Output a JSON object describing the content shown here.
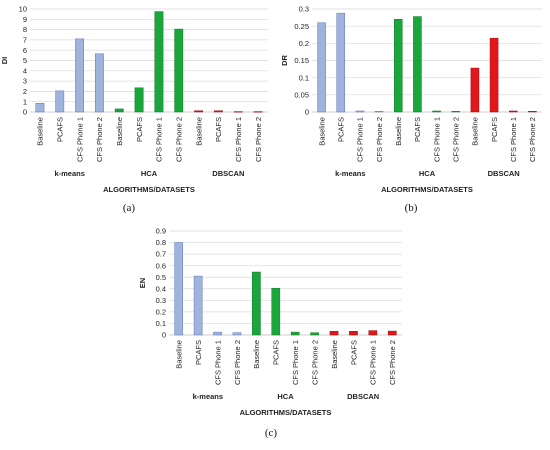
{
  "colors": {
    "blue": "#9fb3dc",
    "blue_edge": "#5a7ab8",
    "green": "#1aa63a",
    "green_edge": "#107a28",
    "red": "#e3161a",
    "red_edge": "#a00d10"
  },
  "chart_data": [
    {
      "type": "bar",
      "panel": "(a)",
      "ylabel": "DI",
      "xlabel": "ALGORITHMS/DATASETS",
      "ylim": [
        0,
        10
      ],
      "yticks": [
        "0",
        "1",
        "2",
        "3",
        "4",
        "5",
        "6",
        "7",
        "8",
        "9",
        "10"
      ],
      "groups": [
        "k-means",
        "HCA",
        "DBSCAN"
      ],
      "categories": [
        "Baseline",
        "PCAFS",
        "CFS Phone 1",
        "CFS Phone 2"
      ],
      "grid": true,
      "series": [
        {
          "group": "k-means",
          "color": "blue",
          "values": [
            0.85,
            2.05,
            7.1,
            5.65
          ]
        },
        {
          "group": "HCA",
          "color": "green",
          "values": [
            0.3,
            2.35,
            9.75,
            8.05
          ]
        },
        {
          "group": "DBSCAN",
          "color": "red",
          "values": [
            0.12,
            0.12,
            0.04,
            0.04
          ]
        }
      ]
    },
    {
      "type": "bar",
      "panel": "(b)",
      "ylabel": "DR",
      "xlabel": "ALGORITHMS/DATASETS",
      "ylim": [
        0,
        0.3
      ],
      "yticks": [
        "0",
        "0.05",
        "0.1",
        "0.15",
        "0.2",
        "0.25",
        "0.3"
      ],
      "groups": [
        "k-means",
        "HCA",
        "DBSCAN"
      ],
      "categories": [
        "Baseline",
        "PCAFS",
        "CFS Phone 1",
        "CFS Phone 2"
      ],
      "grid": true,
      "series": [
        {
          "group": "k-means",
          "color": "blue",
          "values": [
            0.26,
            0.288,
            0.003,
            0.002
          ]
        },
        {
          "group": "HCA",
          "color": "green",
          "values": [
            0.27,
            0.278,
            0.003,
            0.002
          ]
        },
        {
          "group": "DBSCAN",
          "color": "red",
          "values": [
            0.128,
            0.215,
            0.003,
            0.002
          ]
        }
      ]
    },
    {
      "type": "bar",
      "panel": "(c)",
      "ylabel": "EN",
      "xlabel": "ALGORITHMS/DATASETS",
      "ylim": [
        0,
        0.9
      ],
      "yticks": [
        "0",
        "0.1",
        "0.2",
        "0.3",
        "0.4",
        "0.5",
        "0.6",
        "0.7",
        "0.8",
        "0.9"
      ],
      "groups": [
        "k-means",
        "HCA",
        "DBSCAN"
      ],
      "categories": [
        "Baseline",
        "PCAFS",
        "CFS Phone 1",
        "CFS Phone 2"
      ],
      "grid": true,
      "series": [
        {
          "group": "k-means",
          "color": "blue",
          "values": [
            0.8,
            0.51,
            0.025,
            0.02
          ]
        },
        {
          "group": "HCA",
          "color": "green",
          "values": [
            0.545,
            0.405,
            0.025,
            0.02
          ]
        },
        {
          "group": "DBSCAN",
          "color": "red",
          "values": [
            0.032,
            0.032,
            0.038,
            0.034
          ]
        }
      ]
    }
  ]
}
